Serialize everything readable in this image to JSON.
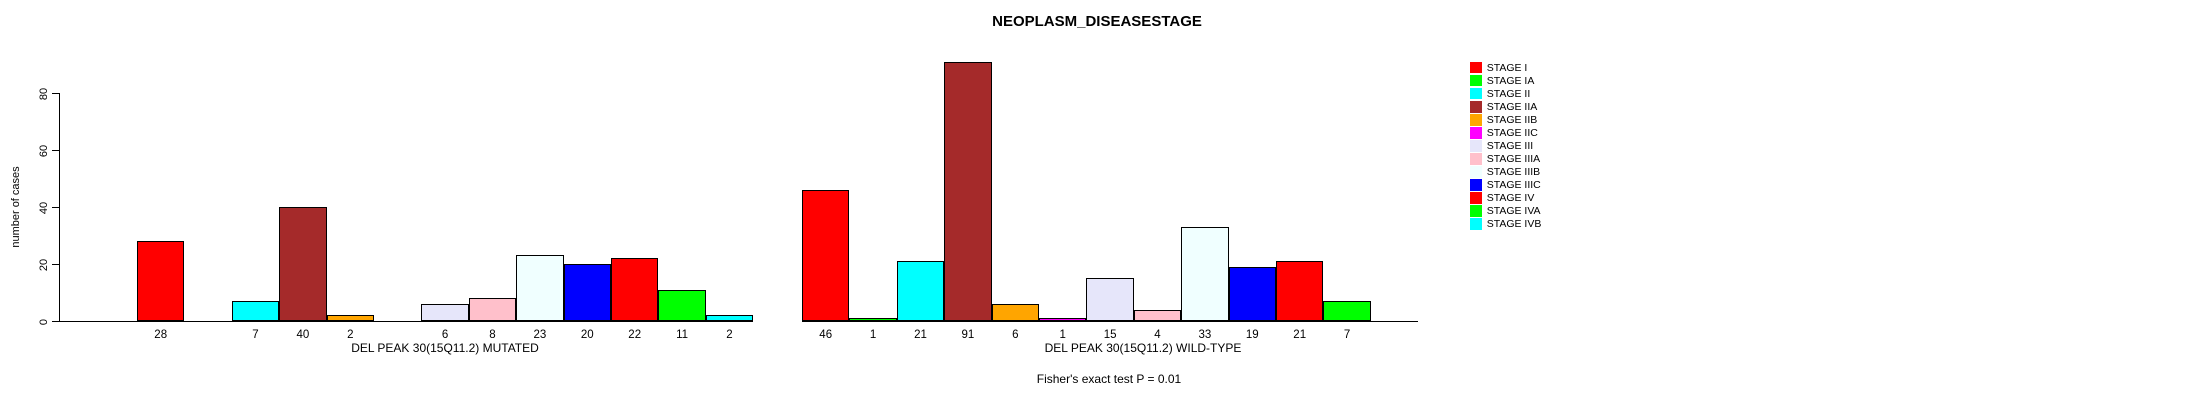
{
  "chart_data": {
    "type": "bar",
    "title": "NEOPLASM_DISEASESTAGE",
    "ylabel": "number of cases",
    "annotation": "Fisher's exact test P = 0.01",
    "ylim": [
      0,
      95
    ],
    "yticks": [
      0,
      20,
      40,
      60,
      80
    ],
    "grid": false,
    "legend_position": "right",
    "categories": [
      "STAGE I",
      "STAGE IA",
      "STAGE II",
      "STAGE IIA",
      "STAGE IIB",
      "STAGE IIC",
      "STAGE III",
      "STAGE IIIA",
      "STAGE IIIB",
      "STAGE IIIC",
      "STAGE IV",
      "STAGE IVA",
      "STAGE IVB"
    ],
    "palette": [
      "#FF0000",
      "#00FF00",
      "#00FFFF",
      "#A52A2A",
      "#FFA500",
      "#FF00FF",
      "#E6E6FA",
      "#FFC0CB",
      "#F0FFFF",
      "#0000FF",
      "#FF0000",
      "#00FF00",
      "#00FFFF"
    ],
    "series": [
      {
        "name": "DEL PEAK 30(15Q11.2) MUTATED",
        "values": [
          28,
          null,
          7,
          40,
          2,
          null,
          6,
          8,
          23,
          20,
          22,
          11,
          2
        ]
      },
      {
        "name": "DEL PEAK 30(15Q11.2) WILD-TYPE",
        "values": [
          46,
          1,
          21,
          91,
          6,
          1,
          15,
          4,
          33,
          19,
          21,
          7,
          null
        ]
      }
    ],
    "bar_value_labels_shown": true,
    "legend": [
      {
        "label": "STAGE I",
        "color": "#FF0000"
      },
      {
        "label": "STAGE IA",
        "color": "#00FF00"
      },
      {
        "label": "STAGE II",
        "color": "#00FFFF"
      },
      {
        "label": "STAGE IIA",
        "color": "#A52A2A"
      },
      {
        "label": "STAGE IIB",
        "color": "#FFA500"
      },
      {
        "label": "STAGE IIC",
        "color": "#FF00FF"
      },
      {
        "label": "STAGE III",
        "color": "#E6E6FA"
      },
      {
        "label": "STAGE IIIA",
        "color": "#FFC0CB"
      },
      {
        "label": "STAGE IIIB",
        "color": "#F0FFFF"
      },
      {
        "label": "STAGE IIIC",
        "color": "#0000FF"
      },
      {
        "label": "STAGE IV",
        "color": "#FF0000"
      },
      {
        "label": "STAGE IVA",
        "color": "#00FF00"
      },
      {
        "label": "STAGE IVB",
        "color": "#00FFFF"
      }
    ]
  }
}
